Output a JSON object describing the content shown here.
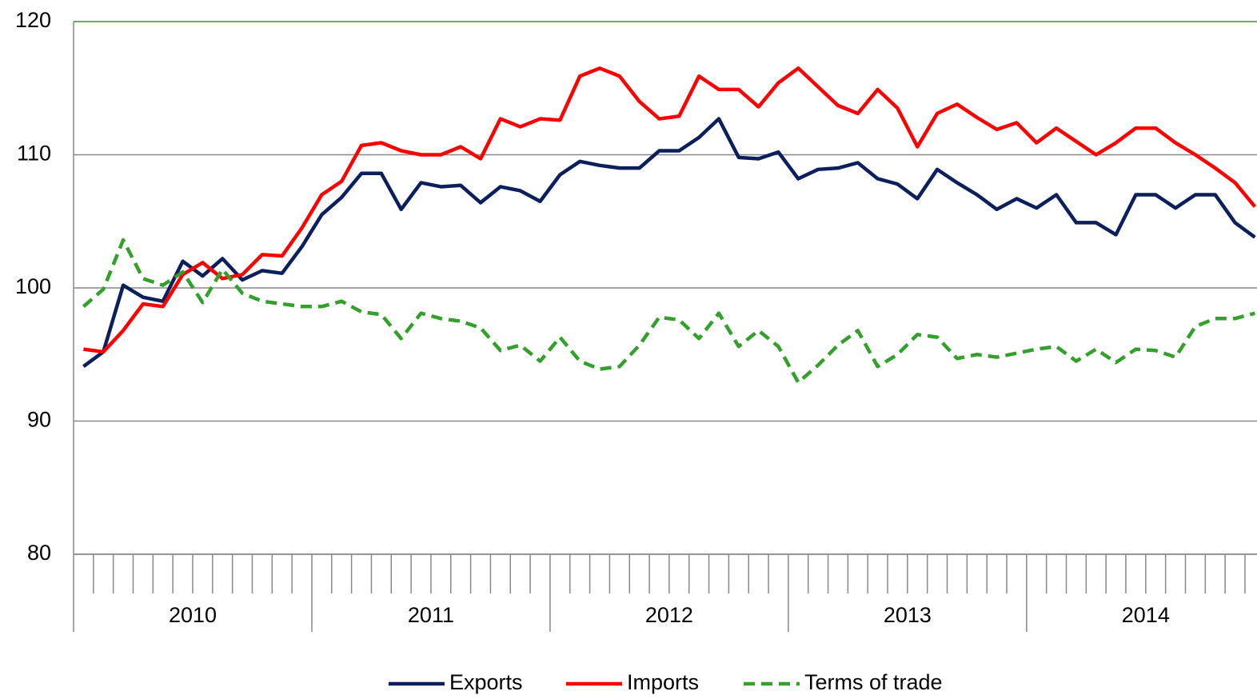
{
  "chart_data": {
    "type": "line",
    "categories": [
      null,
      null,
      null,
      null,
      null,
      null,
      null,
      null,
      null,
      null,
      null,
      null,
      null,
      null,
      null,
      null,
      null,
      null,
      null,
      null,
      null,
      null,
      null,
      null,
      null,
      null,
      null,
      null,
      null,
      null,
      null,
      null,
      null,
      null,
      null,
      null,
      null,
      null,
      null,
      null,
      null,
      null,
      null,
      null,
      null,
      null,
      null,
      null,
      null,
      null,
      null,
      null,
      null,
      null,
      null,
      null,
      null,
      null,
      null,
      null
    ],
    "year_labels": [
      "2010",
      "2011",
      "2012",
      "2013",
      "2014"
    ],
    "ylim": [
      80,
      120
    ],
    "yticks": [
      80,
      90,
      100,
      110,
      120
    ],
    "grid": true,
    "legend": "bottom",
    "series": [
      {
        "name": "Exports",
        "color": "#0a1f5c",
        "dashed": false,
        "values": [
          94.1,
          95.2,
          100.2,
          99.3,
          99.0,
          102.0,
          100.9,
          102.2,
          100.6,
          101.3,
          101.1,
          103.1,
          105.5,
          106.8,
          108.6,
          108.6,
          105.9,
          107.9,
          107.6,
          107.7,
          106.4,
          107.6,
          107.3,
          106.5,
          108.5,
          109.5,
          109.2,
          109.0,
          109.0,
          110.3,
          110.3,
          111.3,
          112.7,
          109.8,
          109.7,
          110.2,
          108.2,
          108.9,
          109.0,
          109.4,
          108.2,
          107.8,
          106.7,
          108.9,
          107.9,
          107.0,
          105.9,
          106.7,
          106.0,
          107.0,
          104.9,
          104.9,
          104.0,
          107.0,
          107.0,
          106.0,
          107.0,
          107.0,
          104.9,
          103.8
        ]
      },
      {
        "name": "Imports",
        "color": "#ff0000",
        "dashed": false,
        "values": [
          95.4,
          95.2,
          96.8,
          98.8,
          98.6,
          101.0,
          101.9,
          100.7,
          101.0,
          102.5,
          102.4,
          104.5,
          107.0,
          108.0,
          110.7,
          110.9,
          110.3,
          110.0,
          110.0,
          110.6,
          109.7,
          112.7,
          112.1,
          112.7,
          112.6,
          115.9,
          116.5,
          115.9,
          114.0,
          112.7,
          112.9,
          115.9,
          114.9,
          114.9,
          113.6,
          115.4,
          116.5,
          115.1,
          113.7,
          113.1,
          114.9,
          113.5,
          110.6,
          113.1,
          113.8,
          112.8,
          111.9,
          112.4,
          110.9,
          112.0,
          111.0,
          110.0,
          110.9,
          112.0,
          112.0,
          110.9,
          110.0,
          109.0,
          107.9,
          106.1
        ]
      },
      {
        "name": "Terms of trade",
        "color": "#33a02c",
        "dashed": true,
        "values": [
          98.6,
          99.9,
          103.6,
          100.7,
          100.2,
          101.2,
          98.9,
          101.4,
          99.6,
          99.0,
          98.8,
          98.6,
          98.6,
          99.0,
          98.2,
          98.0,
          96.2,
          98.1,
          97.7,
          97.5,
          97.0,
          95.3,
          95.7,
          94.5,
          96.3,
          94.5,
          93.9,
          94.1,
          95.7,
          97.8,
          97.6,
          96.2,
          98.1,
          95.6,
          96.8,
          95.6,
          92.9,
          94.2,
          95.7,
          96.8,
          94.1,
          95.0,
          96.5,
          96.3,
          94.7,
          95.0,
          94.8,
          95.1,
          95.4,
          95.6,
          94.5,
          95.4,
          94.4,
          95.4,
          95.3,
          94.8,
          97.1,
          97.7,
          97.7,
          98.1
        ]
      }
    ]
  }
}
